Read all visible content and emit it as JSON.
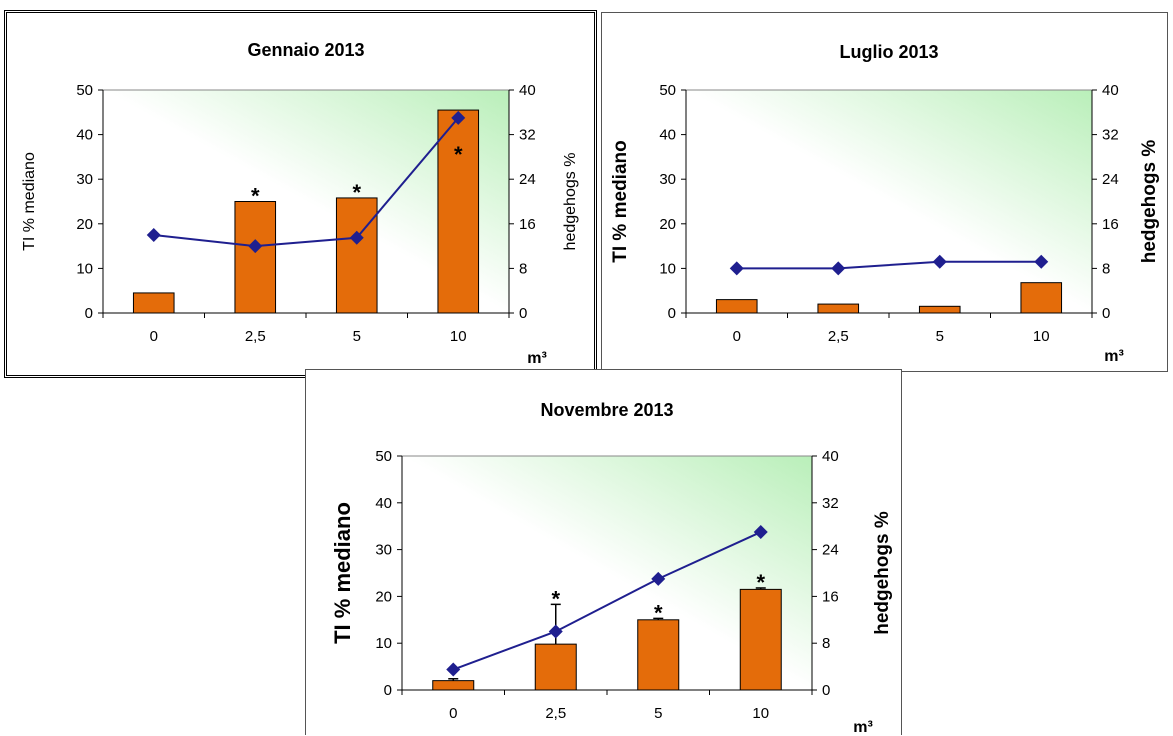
{
  "x_unit": "m³",
  "chart_data": [
    {
      "type": "bar",
      "title": "Gennaio 2013",
      "categories": [
        "0",
        "2,5",
        "5",
        "10"
      ],
      "ylabel": "TI % mediano",
      "y2label": "hedgehogs %",
      "ylim": [
        0,
        50
      ],
      "y2lim": [
        0,
        40
      ],
      "yticks": [
        "0",
        "10",
        "20",
        "30",
        "40",
        "50"
      ],
      "y2ticks": [
        "0",
        "8",
        "16",
        "24",
        "32",
        "40"
      ],
      "series": [
        {
          "kind": "bar",
          "axis": "left",
          "values": [
            4.5,
            25,
            25.8,
            45.5
          ]
        },
        {
          "kind": "line",
          "axis": "right",
          "values": [
            14,
            12,
            13.5,
            35
          ]
        }
      ],
      "significance": [
        "",
        "*",
        "*",
        "*"
      ],
      "colors": {
        "bar": "#e46c0a",
        "line": "#1f1f8f"
      }
    },
    {
      "type": "bar",
      "title": "Luglio 2013",
      "categories": [
        "0",
        "2,5",
        "5",
        "10"
      ],
      "ylabel": "TI % mediano",
      "y2label": "hedgehogs %",
      "ylim": [
        0,
        50
      ],
      "y2lim": [
        0,
        40
      ],
      "yticks": [
        "0",
        "10",
        "20",
        "30",
        "40",
        "50"
      ],
      "y2ticks": [
        "0",
        "8",
        "16",
        "24",
        "32",
        "40"
      ],
      "series": [
        {
          "kind": "bar",
          "axis": "left",
          "values": [
            3,
            2,
            1.5,
            6.8
          ]
        },
        {
          "kind": "line",
          "axis": "right",
          "values": [
            8,
            8,
            9.2,
            9.2
          ]
        }
      ],
      "significance": [
        "",
        "",
        "",
        ""
      ],
      "colors": {
        "bar": "#e46c0a",
        "line": "#1f1f8f"
      }
    },
    {
      "type": "bar",
      "title": "Novembre 2013",
      "categories": [
        "0",
        "2,5",
        "5",
        "10"
      ],
      "ylabel": "TI % mediano",
      "y2label": "hedgehogs %",
      "ylim": [
        0,
        50
      ],
      "y2lim": [
        0,
        40
      ],
      "yticks": [
        "0",
        "10",
        "20",
        "30",
        "40",
        "50"
      ],
      "y2ticks": [
        "0",
        "8",
        "16",
        "24",
        "32",
        "40"
      ],
      "series": [
        {
          "kind": "bar",
          "axis": "left",
          "values": [
            2,
            9.8,
            15,
            21.5
          ],
          "errors": [
            0.4,
            8.5,
            0.3,
            0.3
          ]
        },
        {
          "kind": "line",
          "axis": "right",
          "values": [
            3.5,
            10,
            19,
            27
          ]
        }
      ],
      "significance": [
        "",
        "*",
        "*",
        "*"
      ],
      "colors": {
        "bar": "#e46c0a",
        "line": "#1f1f8f"
      }
    }
  ]
}
